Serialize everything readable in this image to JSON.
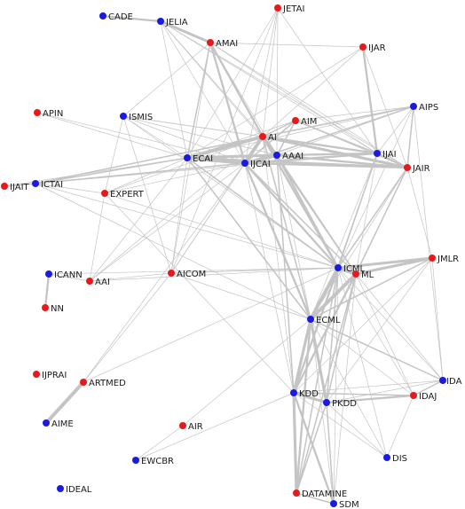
{
  "colors": {
    "red": "#e8191c",
    "blue": "#1b1be0",
    "edge": "#c4c4c4",
    "text": "#1a1a1a"
  },
  "nodes": [
    {
      "id": "CADE",
      "label": "CADE",
      "color": "blue"
    },
    {
      "id": "JELIA",
      "label": "JELIA",
      "color": "blue"
    },
    {
      "id": "JETAI",
      "label": "JETAI",
      "color": "red"
    },
    {
      "id": "AMAI",
      "label": "AMAI",
      "color": "red"
    },
    {
      "id": "IJAR",
      "label": "IJAR",
      "color": "red"
    },
    {
      "id": "APIN",
      "label": "APIN",
      "color": "red"
    },
    {
      "id": "ISMIS",
      "label": "ISMIS",
      "color": "blue"
    },
    {
      "id": "AIM",
      "label": "AIM",
      "color": "red"
    },
    {
      "id": "AIPS",
      "label": "AIPS",
      "color": "blue"
    },
    {
      "id": "AI",
      "label": "AI",
      "color": "red"
    },
    {
      "id": "ECAI",
      "label": "ECAI",
      "color": "blue"
    },
    {
      "id": "AAAI",
      "label": "AAAI",
      "color": "blue"
    },
    {
      "id": "IJCAI",
      "label": "IJCAI",
      "color": "blue"
    },
    {
      "id": "IJAI",
      "label": "IJAI",
      "color": "blue"
    },
    {
      "id": "JAIR",
      "label": "JAIR",
      "color": "red"
    },
    {
      "id": "IJAIT",
      "label": "IJAIT",
      "color": "red"
    },
    {
      "id": "ICTAI",
      "label": "ICTAI",
      "color": "blue"
    },
    {
      "id": "EXPERT",
      "label": "EXPERT",
      "color": "red"
    },
    {
      "id": "ICML",
      "label": "ICML",
      "color": "blue"
    },
    {
      "id": "ML",
      "label": "ML",
      "color": "red"
    },
    {
      "id": "JMLR",
      "label": "JMLR",
      "color": "red"
    },
    {
      "id": "ICANN",
      "label": "ICANN",
      "color": "blue"
    },
    {
      "id": "AAI",
      "label": "AAI",
      "color": "red"
    },
    {
      "id": "AICOM",
      "label": "AICOM",
      "color": "red"
    },
    {
      "id": "NN",
      "label": "NN",
      "color": "red"
    },
    {
      "id": "ECML",
      "label": "ECML",
      "color": "blue"
    },
    {
      "id": "IJPRAI",
      "label": "IJPRAI",
      "color": "red"
    },
    {
      "id": "ARTMED",
      "label": "ARTMED",
      "color": "red"
    },
    {
      "id": "IDA",
      "label": "IDA",
      "color": "blue"
    },
    {
      "id": "KDD",
      "label": "KDD",
      "color": "blue"
    },
    {
      "id": "PKDD",
      "label": "PKDD",
      "color": "blue"
    },
    {
      "id": "IDAJ",
      "label": "IDAJ",
      "color": "red"
    },
    {
      "id": "AIME",
      "label": "AIME",
      "color": "blue"
    },
    {
      "id": "AIR",
      "label": "AIR",
      "color": "red"
    },
    {
      "id": "EWCBR",
      "label": "EWCBR",
      "color": "blue"
    },
    {
      "id": "DIS",
      "label": "DIS",
      "color": "blue"
    },
    {
      "id": "IDEAL",
      "label": "IDEAL",
      "color": "blue"
    },
    {
      "id": "DATAMINE",
      "label": "DATAMINE",
      "color": "red"
    },
    {
      "id": "SDM",
      "label": "SDM",
      "color": "blue"
    }
  ],
  "edges": [
    [
      "CADE",
      "JELIA",
      3
    ],
    [
      "JELIA",
      "AMAI",
      4
    ],
    [
      "JELIA",
      "AI",
      1
    ],
    [
      "JELIA",
      "IJCAI",
      1
    ],
    [
      "JELIA",
      "ECAI",
      1
    ],
    [
      "JELIA",
      "AAAI",
      1
    ],
    [
      "JELIA",
      "JAIR",
      1
    ],
    [
      "JELIA",
      "IJAI",
      1
    ],
    [
      "AMAI",
      "AI",
      3
    ],
    [
      "AMAI",
      "IJCAI",
      3
    ],
    [
      "AMAI",
      "ECAI",
      2
    ],
    [
      "AMAI",
      "AAAI",
      1
    ],
    [
      "AMAI",
      "IJAI",
      1
    ],
    [
      "AMAI",
      "IJAR",
      1
    ],
    [
      "AMAI",
      "JAIR",
      1
    ],
    [
      "AMAI",
      "ICML",
      1
    ],
    [
      "AMAI",
      "AICOM",
      1
    ],
    [
      "AMAI",
      "ISMIS",
      1
    ],
    [
      "JETAI",
      "AI",
      1
    ],
    [
      "JETAI",
      "IJCAI",
      1
    ],
    [
      "JETAI",
      "IJAI",
      1
    ],
    [
      "JETAI",
      "AAAI",
      1
    ],
    [
      "JETAI",
      "ECAI",
      1
    ],
    [
      "JETAI",
      "AICOM",
      1
    ],
    [
      "IJAR",
      "IJAI",
      3
    ],
    [
      "IJAR",
      "AI",
      1
    ],
    [
      "IJAR",
      "JAIR",
      1
    ],
    [
      "IJAR",
      "ECAI",
      1
    ],
    [
      "APIN",
      "ECAI",
      1
    ],
    [
      "APIN",
      "IJCAI",
      1
    ],
    [
      "ISMIS",
      "ECAI",
      1
    ],
    [
      "ISMIS",
      "IJCAI",
      1
    ],
    [
      "ISMIS",
      "AI",
      1
    ],
    [
      "ISMIS",
      "IJAI",
      1
    ],
    [
      "ISMIS",
      "ICML",
      1
    ],
    [
      "ISMIS",
      "AICOM",
      1
    ],
    [
      "ISMIS",
      "EXPERT",
      1
    ],
    [
      "ISMIS",
      "AAAI",
      1
    ],
    [
      "AIM",
      "AI",
      2
    ],
    [
      "AIM",
      "IJCAI",
      2
    ],
    [
      "AIM",
      "AAAI",
      2
    ],
    [
      "AIM",
      "ECAI",
      1
    ],
    [
      "AIM",
      "IJAI",
      2
    ],
    [
      "AIM",
      "JAIR",
      1
    ],
    [
      "AIM",
      "AIPS",
      1
    ],
    [
      "AIPS",
      "AI",
      2
    ],
    [
      "AIPS",
      "JAIR",
      2
    ],
    [
      "AIPS",
      "IJCAI",
      2
    ],
    [
      "AIPS",
      "ECAI",
      1
    ],
    [
      "AIPS",
      "AAAI",
      1
    ],
    [
      "AIPS",
      "IJAI",
      1
    ],
    [
      "AIPS",
      "ICML",
      1
    ],
    [
      "AIPS",
      "IDA",
      1
    ],
    [
      "AI",
      "ECAI",
      5
    ],
    [
      "AI",
      "IJCAI",
      5
    ],
    [
      "AI",
      "AAAI",
      4
    ],
    [
      "AI",
      "IJAI",
      3
    ],
    [
      "AI",
      "JAIR",
      4
    ],
    [
      "AI",
      "ICML",
      3
    ],
    [
      "AI",
      "ML",
      2
    ],
    [
      "AI",
      "ECML",
      2
    ],
    [
      "AI",
      "AICOM",
      1
    ],
    [
      "AI",
      "ICTAI",
      2
    ],
    [
      "AI",
      "EXPERT",
      1
    ],
    [
      "AI",
      "AAI",
      1
    ],
    [
      "AI",
      "KDD",
      1
    ],
    [
      "ECAI",
      "IJCAI",
      5
    ],
    [
      "ECAI",
      "AAAI",
      4
    ],
    [
      "ECAI",
      "IJAI",
      2
    ],
    [
      "ECAI",
      "JAIR",
      3
    ],
    [
      "ECAI",
      "ICTAI",
      2
    ],
    [
      "ECAI",
      "ICML",
      2
    ],
    [
      "ECAI",
      "ECML",
      2
    ],
    [
      "ECAI",
      "AICOM",
      1
    ],
    [
      "ECAI",
      "EXPERT",
      1
    ],
    [
      "ECAI",
      "AAI",
      1
    ],
    [
      "ECAI",
      "IJAIT",
      1
    ],
    [
      "IJCAI",
      "AAAI",
      5
    ],
    [
      "IJCAI",
      "IJAI",
      3
    ],
    [
      "IJCAI",
      "JAIR",
      3
    ],
    [
      "IJCAI",
      "ICML",
      3
    ],
    [
      "IJCAI",
      "ECML",
      3
    ],
    [
      "IJCAI",
      "ML",
      2
    ],
    [
      "IJCAI",
      "KDD",
      1
    ],
    [
      "IJCAI",
      "ICTAI",
      2
    ],
    [
      "IJCAI",
      "EXPERT",
      1
    ],
    [
      "IJCAI",
      "AICOM",
      1
    ],
    [
      "IJCAI",
      "AAI",
      1
    ],
    [
      "AAAI",
      "IJAI",
      3
    ],
    [
      "AAAI",
      "JAIR",
      3
    ],
    [
      "AAAI",
      "ICML",
      3
    ],
    [
      "AAAI",
      "ML",
      2
    ],
    [
      "AAAI",
      "ECML",
      1
    ],
    [
      "AAAI",
      "KDD",
      2
    ],
    [
      "IJAI",
      "JAIR",
      3
    ],
    [
      "IJAI",
      "ICML",
      2
    ],
    [
      "IJAI",
      "ML",
      1
    ],
    [
      "IJAI",
      "ECML",
      1
    ],
    [
      "IJAI",
      "KDD",
      1
    ],
    [
      "IJAI",
      "ICTAI",
      1
    ],
    [
      "JAIR",
      "ICML",
      2
    ],
    [
      "JAIR",
      "ML",
      2
    ],
    [
      "JAIR",
      "JMLR",
      1
    ],
    [
      "JAIR",
      "ECML",
      1
    ],
    [
      "IJAIT",
      "ICTAI",
      2
    ],
    [
      "ICTAI",
      "EXPERT",
      1
    ],
    [
      "ICTAI",
      "ICML",
      1
    ],
    [
      "ICTAI",
      "ECML",
      1
    ],
    [
      "EXPERT",
      "AAI",
      1
    ],
    [
      "EXPERT",
      "ICML",
      1
    ],
    [
      "EXPERT",
      "KDD",
      1
    ],
    [
      "ICML",
      "ML",
      5
    ],
    [
      "ICML",
      "JMLR",
      4
    ],
    [
      "ICML",
      "ECML",
      5
    ],
    [
      "ICML",
      "KDD",
      3
    ],
    [
      "ICML",
      "PKDD",
      2
    ],
    [
      "ICML",
      "IDA",
      1
    ],
    [
      "ICML",
      "IDAJ",
      1
    ],
    [
      "ICML",
      "DATAMINE",
      2
    ],
    [
      "ICML",
      "AICOM",
      1
    ],
    [
      "ICML",
      "AAI",
      1
    ],
    [
      "ICML",
      "DIS",
      1
    ],
    [
      "ICML",
      "SDM",
      1
    ],
    [
      "ML",
      "JMLR",
      4
    ],
    [
      "ML",
      "ECML",
      5
    ],
    [
      "ML",
      "KDD",
      3
    ],
    [
      "ML",
      "PKDD",
      2
    ],
    [
      "ML",
      "DATAMINE",
      2
    ],
    [
      "ML",
      "IDAJ",
      1
    ],
    [
      "ML",
      "IDA",
      1
    ],
    [
      "ML",
      "SDM",
      1
    ],
    [
      "JMLR",
      "ECML",
      2
    ],
    [
      "JMLR",
      "KDD",
      1
    ],
    [
      "JMLR",
      "PKDD",
      1
    ],
    [
      "JMLR",
      "IDA",
      1
    ],
    [
      "ICANN",
      "NN",
      3
    ],
    [
      "ICANN",
      "AAI",
      1
    ],
    [
      "ICANN",
      "ICML",
      1
    ],
    [
      "AAI",
      "AICOM",
      1
    ],
    [
      "AICOM",
      "ECML",
      1
    ],
    [
      "AICOM",
      "ICML",
      1
    ],
    [
      "ECML",
      "KDD",
      4
    ],
    [
      "ECML",
      "PKDD",
      4
    ],
    [
      "ECML",
      "DATAMINE",
      3
    ],
    [
      "ECML",
      "IDA",
      2
    ],
    [
      "ECML",
      "IDAJ",
      1
    ],
    [
      "ECML",
      "DIS",
      1
    ],
    [
      "ECML",
      "SDM",
      1
    ],
    [
      "ECML",
      "AIR",
      1
    ],
    [
      "KDD",
      "PKDD",
      4
    ],
    [
      "KDD",
      "DATAMINE",
      4
    ],
    [
      "KDD",
      "SDM",
      3
    ],
    [
      "KDD",
      "IDAJ",
      2
    ],
    [
      "KDD",
      "IDA",
      1
    ],
    [
      "KDD",
      "DIS",
      1
    ],
    [
      "KDD",
      "EWCBR",
      1
    ],
    [
      "PKDD",
      "IDAJ",
      3
    ],
    [
      "PKDD",
      "DATAMINE",
      2
    ],
    [
      "PKDD",
      "SDM",
      2
    ],
    [
      "PKDD",
      "IDA",
      1
    ],
    [
      "PKDD",
      "DIS",
      1
    ],
    [
      "IDAJ",
      "IDA",
      2
    ],
    [
      "IDAJ",
      "DIS",
      1
    ],
    [
      "DATAMINE",
      "SDM",
      2
    ],
    [
      "ARTMED",
      "AIME",
      5
    ],
    [
      "ARTMED",
      "AICOM",
      1
    ],
    [
      "ARTMED",
      "ICML",
      1
    ],
    [
      "ARTMED",
      "IJCAI",
      1
    ],
    [
      "AIR",
      "EWCBR",
      1
    ]
  ]
}
